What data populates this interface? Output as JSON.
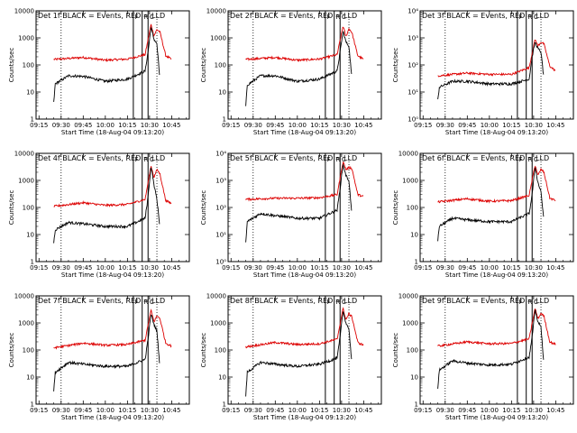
{
  "chart_data": {
    "type": "line",
    "layout": "3x3 grid of panels",
    "x_tick_labels": [
      "09:15",
      "09:30",
      "09:45",
      "10:00",
      "10:15",
      "10:30",
      "10:45"
    ],
    "x_tick_minutes": [
      0,
      15,
      30,
      45,
      60,
      75,
      90
    ],
    "x_range_minutes": [
      -2,
      102
    ],
    "xlabel": "Start Time (18-Aug-04 09:13:20)",
    "ylabel": "Counts/sec",
    "y_scale": "log",
    "ylim": [
      1,
      10000
    ],
    "y_tick_values": [
      1,
      10,
      100,
      1000,
      10000
    ],
    "y_tick_labels_decimal": [
      "1",
      "10",
      "100",
      "1000",
      "10000"
    ],
    "y_tick_labels_exponent": [
      "10⁰",
      "10¹",
      "10²",
      "10³",
      "10⁴"
    ],
    "dotted_vlines_minutes": [
      15,
      80
    ],
    "solid_vlines_minutes": [
      64,
      70,
      74
    ],
    "marker_labels": [
      {
        "text": "F",
        "minute": 65
      },
      {
        "text": "R",
        "minute": 71
      },
      {
        "text": "C",
        "minute": 75
      }
    ],
    "series_colors": {
      "events": "#000000",
      "lld": "#dd0000"
    },
    "legend": "BLACK = Events, RED = LLD",
    "panels": [
      {
        "title": "Det 1f BLACK = Events, RED = LLD",
        "tick_style": "decimal",
        "lld": [
          [
            10,
            160
          ],
          [
            30,
            190
          ],
          [
            45,
            150
          ],
          [
            60,
            165
          ],
          [
            72,
            240
          ],
          [
            76,
            3200
          ],
          [
            78,
            1200
          ],
          [
            80,
            2000
          ],
          [
            82,
            1700
          ],
          [
            86,
            220
          ],
          [
            90,
            160
          ]
        ],
        "events": [
          [
            10,
            4
          ],
          [
            11,
            20
          ],
          [
            20,
            40
          ],
          [
            30,
            38
          ],
          [
            45,
            25
          ],
          [
            60,
            30
          ],
          [
            72,
            60
          ],
          [
            74,
            300
          ],
          [
            76,
            2500
          ],
          [
            78,
            900
          ],
          [
            80,
            600
          ],
          [
            82,
            30
          ]
        ]
      },
      {
        "title": "Det 2f BLACK = Events, RED = LLD",
        "tick_style": "decimal",
        "lld": [
          [
            10,
            160
          ],
          [
            30,
            190
          ],
          [
            45,
            150
          ],
          [
            60,
            165
          ],
          [
            72,
            240
          ],
          [
            76,
            2800
          ],
          [
            78,
            1100
          ],
          [
            80,
            2200
          ],
          [
            82,
            1600
          ],
          [
            86,
            220
          ],
          [
            90,
            160
          ]
        ],
        "events": [
          [
            10,
            3
          ],
          [
            11,
            18
          ],
          [
            20,
            40
          ],
          [
            30,
            40
          ],
          [
            45,
            25
          ],
          [
            60,
            30
          ],
          [
            72,
            60
          ],
          [
            74,
            300
          ],
          [
            76,
            1800
          ],
          [
            78,
            700
          ],
          [
            80,
            500
          ],
          [
            82,
            30
          ]
        ]
      },
      {
        "title": "Det 3f BLACK = Events, RED = LLD",
        "tick_style": "exponent",
        "lld": [
          [
            10,
            40
          ],
          [
            30,
            50
          ],
          [
            45,
            45
          ],
          [
            60,
            45
          ],
          [
            72,
            80
          ],
          [
            76,
            900
          ],
          [
            78,
            500
          ],
          [
            80,
            700
          ],
          [
            82,
            600
          ],
          [
            86,
            90
          ],
          [
            90,
            60
          ]
        ],
        "events": [
          [
            10,
            5
          ],
          [
            11,
            15
          ],
          [
            20,
            25
          ],
          [
            30,
            25
          ],
          [
            45,
            20
          ],
          [
            60,
            20
          ],
          [
            72,
            30
          ],
          [
            74,
            200
          ],
          [
            76,
            700
          ],
          [
            78,
            400
          ],
          [
            80,
            300
          ],
          [
            82,
            30
          ]
        ]
      },
      {
        "title": "Det 4f BLACK = Events, RED = LLD",
        "tick_style": "decimal",
        "lld": [
          [
            10,
            110
          ],
          [
            30,
            150
          ],
          [
            45,
            120
          ],
          [
            60,
            130
          ],
          [
            72,
            200
          ],
          [
            76,
            3500
          ],
          [
            78,
            1300
          ],
          [
            80,
            2500
          ],
          [
            82,
            1800
          ],
          [
            86,
            180
          ],
          [
            90,
            140
          ]
        ],
        "events": [
          [
            10,
            5
          ],
          [
            11,
            15
          ],
          [
            20,
            28
          ],
          [
            30,
            25
          ],
          [
            45,
            20
          ],
          [
            60,
            20
          ],
          [
            72,
            40
          ],
          [
            74,
            250
          ],
          [
            76,
            3500
          ],
          [
            78,
            700
          ],
          [
            80,
            200
          ],
          [
            82,
            20
          ]
        ]
      },
      {
        "title": "Det 5f BLACK = Events, RED = LLD",
        "tick_style": "exponent",
        "lld": [
          [
            10,
            200
          ],
          [
            30,
            220
          ],
          [
            45,
            220
          ],
          [
            60,
            230
          ],
          [
            72,
            300
          ],
          [
            76,
            5000
          ],
          [
            78,
            2500
          ],
          [
            80,
            3000
          ],
          [
            82,
            2800
          ],
          [
            86,
            300
          ],
          [
            90,
            250
          ]
        ],
        "events": [
          [
            10,
            5
          ],
          [
            11,
            30
          ],
          [
            20,
            60
          ],
          [
            30,
            50
          ],
          [
            45,
            40
          ],
          [
            60,
            40
          ],
          [
            72,
            80
          ],
          [
            74,
            500
          ],
          [
            76,
            4000
          ],
          [
            78,
            1500
          ],
          [
            80,
            1000
          ],
          [
            82,
            50
          ]
        ]
      },
      {
        "title": "Det 6f BLACK = Events, RED = LLD",
        "tick_style": "decimal",
        "lld": [
          [
            10,
            160
          ],
          [
            30,
            210
          ],
          [
            45,
            170
          ],
          [
            60,
            180
          ],
          [
            72,
            280
          ],
          [
            76,
            3800
          ],
          [
            78,
            1500
          ],
          [
            80,
            2600
          ],
          [
            82,
            2000
          ],
          [
            86,
            220
          ],
          [
            90,
            180
          ]
        ],
        "events": [
          [
            10,
            6
          ],
          [
            11,
            20
          ],
          [
            20,
            40
          ],
          [
            30,
            35
          ],
          [
            45,
            30
          ],
          [
            60,
            30
          ],
          [
            72,
            60
          ],
          [
            74,
            300
          ],
          [
            76,
            3200
          ],
          [
            78,
            800
          ],
          [
            80,
            400
          ],
          [
            82,
            30
          ]
        ]
      },
      {
        "title": "Det 7f BLACK = Events, RED = LLD",
        "tick_style": "decimal",
        "lld": [
          [
            10,
            120
          ],
          [
            30,
            180
          ],
          [
            45,
            150
          ],
          [
            60,
            160
          ],
          [
            72,
            230
          ],
          [
            76,
            3000
          ],
          [
            78,
            1100
          ],
          [
            80,
            1800
          ],
          [
            82,
            1500
          ],
          [
            86,
            180
          ],
          [
            90,
            140
          ]
        ],
        "events": [
          [
            10,
            3
          ],
          [
            11,
            15
          ],
          [
            20,
            35
          ],
          [
            30,
            30
          ],
          [
            45,
            25
          ],
          [
            60,
            25
          ],
          [
            72,
            45
          ],
          [
            74,
            250
          ],
          [
            76,
            2200
          ],
          [
            78,
            900
          ],
          [
            80,
            500
          ],
          [
            82,
            25
          ]
        ]
      },
      {
        "title": "Det 8f BLACK = Events, RED = LLD",
        "tick_style": "decimal",
        "lld": [
          [
            10,
            130
          ],
          [
            30,
            190
          ],
          [
            45,
            160
          ],
          [
            60,
            170
          ],
          [
            72,
            250
          ],
          [
            76,
            3500
          ],
          [
            78,
            1300
          ],
          [
            80,
            2200
          ],
          [
            82,
            1700
          ],
          [
            86,
            190
          ],
          [
            90,
            150
          ]
        ],
        "events": [
          [
            10,
            2
          ],
          [
            11,
            15
          ],
          [
            20,
            35
          ],
          [
            30,
            30
          ],
          [
            45,
            25
          ],
          [
            60,
            30
          ],
          [
            72,
            50
          ],
          [
            74,
            300
          ],
          [
            76,
            2800
          ],
          [
            78,
            1000
          ],
          [
            80,
            600
          ],
          [
            82,
            30
          ]
        ]
      },
      {
        "title": "Det 9f BLACK = Events, RED = LLD",
        "tick_style": "decimal",
        "lld": [
          [
            10,
            140
          ],
          [
            30,
            200
          ],
          [
            45,
            170
          ],
          [
            60,
            175
          ],
          [
            72,
            260
          ],
          [
            76,
            3500
          ],
          [
            78,
            1400
          ],
          [
            80,
            2300
          ],
          [
            82,
            1800
          ],
          [
            86,
            200
          ],
          [
            90,
            160
          ]
        ],
        "events": [
          [
            10,
            4
          ],
          [
            11,
            18
          ],
          [
            20,
            40
          ],
          [
            30,
            33
          ],
          [
            45,
            28
          ],
          [
            60,
            30
          ],
          [
            72,
            55
          ],
          [
            74,
            300
          ],
          [
            76,
            3000
          ],
          [
            78,
            1100
          ],
          [
            80,
            700
          ],
          [
            82,
            30
          ]
        ]
      }
    ]
  }
}
